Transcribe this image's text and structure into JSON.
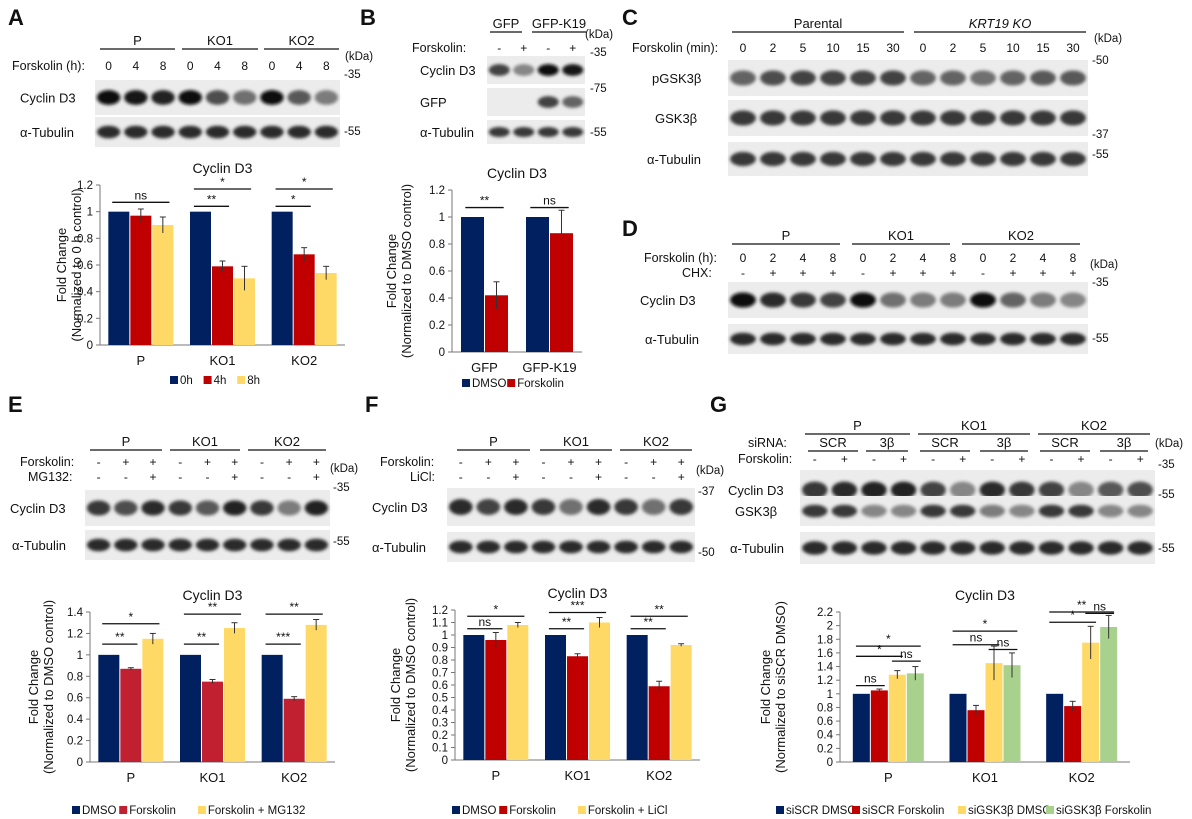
{
  "panels": {
    "A": {
      "letter": "A",
      "groups": [
        "P",
        "KO1",
        "KO2"
      ],
      "row_label": "Forskolin (h):",
      "row_values": [
        "0",
        "4",
        "8",
        "0",
        "4",
        "8",
        "0",
        "4",
        "8"
      ],
      "kda_label": "(kDa)",
      "markers": [
        "35",
        "55"
      ],
      "blots": [
        {
          "label": "Cyclin D3",
          "intensity": [
            1.0,
            0.95,
            0.9,
            1.0,
            0.7,
            0.55,
            1.0,
            0.65,
            0.5
          ]
        },
        {
          "label": "α-Tubulin",
          "intensity": [
            0.85,
            0.85,
            0.85,
            0.85,
            0.85,
            0.85,
            0.85,
            0.85,
            0.85
          ]
        }
      ],
      "chart_data": {
        "type": "bar",
        "title": "Cyclin D3",
        "ylabel": "Fold Change",
        "ylabel2": "(Normalized to 0 h control)",
        "ylim": [
          0,
          1.2
        ],
        "yticks": [
          "0",
          "0.2",
          "0.4",
          "0.6",
          "0.8",
          "1",
          "1.2"
        ],
        "categories": [
          "P",
          "KO1",
          "KO2"
        ],
        "series": [
          {
            "name": "0h",
            "color": "#002060",
            "values": [
              1.0,
              1.0,
              1.0
            ],
            "errors": [
              0,
              0,
              0
            ]
          },
          {
            "name": "4h",
            "color": "#c00000",
            "values": [
              0.97,
              0.59,
              0.68
            ],
            "errors": [
              0.05,
              0.04,
              0.05
            ]
          },
          {
            "name": "8h",
            "color": "#ffd966",
            "values": [
              0.9,
              0.5,
              0.54
            ],
            "errors": [
              0.06,
              0.09,
              0.05
            ]
          }
        ],
        "annotations": [
          "ns",
          "**",
          "*",
          "*",
          "*"
        ]
      }
    },
    "B": {
      "letter": "B",
      "groups": [
        "GFP",
        "GFP-K19"
      ],
      "row_label": "Forskolin:",
      "row_values": [
        "-",
        "+",
        "-",
        "+"
      ],
      "kda_label": "(kDa)",
      "markers": [
        "35",
        "75",
        "55"
      ],
      "blots": [
        {
          "label": "Cyclin D3",
          "intensity": [
            0.75,
            0.45,
            1.0,
            0.95
          ]
        },
        {
          "label": "GFP",
          "intensity": [
            0.0,
            0.0,
            0.75,
            0.6
          ]
        },
        {
          "label": "α-Tubulin",
          "intensity": [
            0.8,
            0.8,
            0.8,
            0.8
          ]
        }
      ],
      "chart_data": {
        "type": "bar",
        "title": "Cyclin D3",
        "ylabel": "Fold Change",
        "ylabel2": "(Normalized to DMSO control)",
        "ylim": [
          0,
          1.2
        ],
        "yticks": [
          "0",
          "0.2",
          "0.4",
          "0.6",
          "0.8",
          "1",
          "1.2"
        ],
        "categories": [
          "GFP",
          "GFP-K19"
        ],
        "series": [
          {
            "name": "DMSO",
            "color": "#002060",
            "values": [
              1.0,
              1.0
            ],
            "errors": [
              0,
              0
            ]
          },
          {
            "name": "Forskolin",
            "color": "#c00000",
            "values": [
              0.42,
              0.88
            ],
            "errors": [
              0.1,
              0.17
            ]
          }
        ],
        "annotations": [
          "**",
          "ns"
        ]
      }
    },
    "C": {
      "letter": "C",
      "groups": [
        "Parental",
        "KRT19 KO"
      ],
      "row_label": "Forskolin (min):",
      "row_values": [
        "0",
        "2",
        "5",
        "10",
        "15",
        "30",
        "0",
        "2",
        "5",
        "10",
        "15",
        "30"
      ],
      "kda_label": "(kDa)",
      "markers": [
        "50",
        "37",
        "55"
      ],
      "blots": [
        {
          "label": "pGSK3β",
          "intensity": [
            0.6,
            0.7,
            0.75,
            0.75,
            0.75,
            0.75,
            0.6,
            0.6,
            0.55,
            0.6,
            0.65,
            0.65
          ]
        },
        {
          "label": "GSK3β",
          "intensity": [
            0.8,
            0.8,
            0.8,
            0.8,
            0.8,
            0.8,
            0.8,
            0.8,
            0.8,
            0.8,
            0.8,
            0.8
          ]
        },
        {
          "label": "α-Tubulin",
          "intensity": [
            0.8,
            0.8,
            0.8,
            0.8,
            0.8,
            0.8,
            0.8,
            0.8,
            0.8,
            0.8,
            0.8,
            0.8
          ]
        }
      ]
    },
    "D": {
      "letter": "D",
      "groups": [
        "P",
        "KO1",
        "KO2"
      ],
      "row_label": "Forskolin (h):",
      "row_values": [
        "0",
        "2",
        "4",
        "8",
        "0",
        "2",
        "4",
        "8",
        "0",
        "2",
        "4",
        "8"
      ],
      "row2_label": "CHX:",
      "row2_values": [
        "-",
        "+",
        "+",
        "+",
        "-",
        "+",
        "+",
        "+",
        "-",
        "+",
        "+",
        "+"
      ],
      "kda_label": "(kDa)",
      "markers": [
        "35",
        "55"
      ],
      "blots": [
        {
          "label": "Cyclin D3",
          "intensity": [
            1.0,
            0.85,
            0.8,
            0.75,
            1.0,
            0.55,
            0.5,
            0.5,
            1.0,
            0.6,
            0.5,
            0.45
          ]
        },
        {
          "label": "α-Tubulin",
          "intensity": [
            0.85,
            0.85,
            0.85,
            0.85,
            0.85,
            0.85,
            0.85,
            0.85,
            0.85,
            0.85,
            0.85,
            0.85
          ]
        }
      ]
    },
    "E": {
      "letter": "E",
      "groups": [
        "P",
        "KO1",
        "KO2"
      ],
      "row_label": "Forskolin:",
      "row_values": [
        "-",
        "+",
        "+",
        "-",
        "+",
        "+",
        "-",
        "+",
        "+"
      ],
      "row2_label": "MG132:",
      "row2_values": [
        "-",
        "-",
        "+",
        "-",
        "-",
        "+",
        "-",
        "-",
        "+"
      ],
      "kda_label": "(kDa)",
      "markers": [
        "35",
        "55"
      ],
      "blots": [
        {
          "label": "Cyclin D3",
          "intensity": [
            0.8,
            0.7,
            0.85,
            0.8,
            0.65,
            0.9,
            0.8,
            0.5,
            0.9
          ]
        },
        {
          "label": "α-Tubulin",
          "intensity": [
            0.85,
            0.85,
            0.85,
            0.85,
            0.85,
            0.85,
            0.85,
            0.85,
            0.85
          ]
        }
      ],
      "chart_data": {
        "type": "bar",
        "title": "Cyclin D3",
        "ylabel": "Fold Change",
        "ylabel2": "(Normalized to DMSO control)",
        "ylim": [
          0,
          1.4
        ],
        "yticks": [
          "0",
          "0.2",
          "0.4",
          "0.6",
          "0.8",
          "1",
          "1.2",
          "1.4"
        ],
        "categories": [
          "P",
          "KO1",
          "KO2"
        ],
        "series": [
          {
            "name": "DMSO",
            "color": "#002060",
            "values": [
              1.0,
              1.0,
              1.0
            ],
            "errors": [
              0,
              0,
              0
            ]
          },
          {
            "name": "Forskolin",
            "color": "#c0202f",
            "values": [
              0.87,
              0.75,
              0.59
            ],
            "errors": [
              0.01,
              0.02,
              0.02
            ]
          },
          {
            "name": "Forskolin + MG132",
            "color": "#ffd966",
            "values": [
              1.15,
              1.25,
              1.28
            ],
            "errors": [
              0.05,
              0.05,
              0.05
            ]
          }
        ],
        "annotations": [
          "*",
          "**",
          "**",
          "**",
          "**",
          "***"
        ]
      }
    },
    "F": {
      "letter": "F",
      "groups": [
        "P",
        "KO1",
        "KO2"
      ],
      "row_label": "Forskolin:",
      "row_values": [
        "-",
        "+",
        "+",
        "-",
        "+",
        "+",
        "-",
        "+",
        "+"
      ],
      "row2_label": "LiCl:",
      "row2_values": [
        "-",
        "-",
        "+",
        "-",
        "-",
        "+",
        "-",
        "-",
        "+"
      ],
      "kda_label": "(kDa)",
      "markers": [
        "37",
        "50"
      ],
      "blots": [
        {
          "label": "Cyclin D3",
          "intensity": [
            0.85,
            0.75,
            0.85,
            0.8,
            0.55,
            0.85,
            0.8,
            0.55,
            0.8
          ]
        },
        {
          "label": "α-Tubulin",
          "intensity": [
            0.85,
            0.85,
            0.85,
            0.85,
            0.85,
            0.85,
            0.85,
            0.85,
            0.85
          ]
        }
      ],
      "chart_data": {
        "type": "bar",
        "title": "Cyclin D3",
        "ylabel": "Fold Change",
        "ylabel2": "(Normalized to DMSO control)",
        "ylim": [
          0,
          1.2
        ],
        "yticks": [
          "0",
          "0.1",
          "0.2",
          "0.3",
          "0.4",
          "0.5",
          "0.6",
          "0.7",
          "0.8",
          "0.9",
          "1",
          "1.1",
          "1.2"
        ],
        "categories": [
          "P",
          "KO1",
          "KO2"
        ],
        "series": [
          {
            "name": "DMSO",
            "color": "#002060",
            "values": [
              1.0,
              1.0,
              1.0
            ],
            "errors": [
              0,
              0,
              0
            ]
          },
          {
            "name": "Forskolin",
            "color": "#c00000",
            "values": [
              0.96,
              0.83,
              0.59
            ],
            "errors": [
              0.06,
              0.02,
              0.04
            ]
          },
          {
            "name": "Forskolin + LiCl",
            "color": "#ffd966",
            "values": [
              1.08,
              1.1,
              0.92
            ],
            "errors": [
              0.02,
              0.04,
              0.01
            ]
          }
        ],
        "annotations": [
          "*",
          "ns",
          "***",
          "**",
          "**",
          "**"
        ]
      }
    },
    "G": {
      "letter": "G",
      "groups": [
        "P",
        "KO1",
        "KO2"
      ],
      "row_label": "siRNA:",
      "siRNA_labels": [
        "SCR",
        "3β",
        "SCR",
        "3β",
        "SCR",
        "3β"
      ],
      "row2_label": "Forskolin:",
      "row2_values": [
        "-",
        "+",
        "-",
        "+",
        "-",
        "+",
        "-",
        "+",
        "-",
        "+",
        "-",
        "+"
      ],
      "kda_label": "(kDa)",
      "markers": [
        "35",
        "55",
        "55"
      ],
      "blots": [
        {
          "label": "Cyclin D3",
          "intensity": [
            0.8,
            0.85,
            0.9,
            0.9,
            0.75,
            0.45,
            0.85,
            0.8,
            0.75,
            0.45,
            0.65,
            0.7
          ]
        },
        {
          "label": "GSK3β",
          "intensity": [
            0.8,
            0.8,
            0.45,
            0.45,
            0.8,
            0.8,
            0.5,
            0.45,
            0.8,
            0.8,
            0.45,
            0.45
          ]
        },
        {
          "label": "α-Tubulin",
          "intensity": [
            0.85,
            0.85,
            0.85,
            0.85,
            0.85,
            0.85,
            0.85,
            0.85,
            0.85,
            0.85,
            0.85,
            0.85
          ]
        }
      ],
      "chart_data": {
        "type": "bar",
        "title": "Cyclin D3",
        "ylabel": "Fold Change",
        "ylabel2": "(Normalized to siSCR DMSO)",
        "ylim": [
          0,
          2.2
        ],
        "yticks": [
          "0",
          "0.2",
          "0.4",
          "0.6",
          "0.8",
          "1",
          "1.2",
          "1.4",
          "1.6",
          "1.8",
          "2",
          "2.2"
        ],
        "categories": [
          "P",
          "KO1",
          "KO2"
        ],
        "series": [
          {
            "name": "siSCR DMSO",
            "color": "#002060",
            "values": [
              1.0,
              1.0,
              1.0
            ],
            "errors": [
              0,
              0,
              0
            ]
          },
          {
            "name": "siSCR Forskolin",
            "color": "#c00000",
            "values": [
              1.05,
              0.76,
              0.82
            ],
            "errors": [
              0.02,
              0.07,
              0.07
            ]
          },
          {
            "name": "siGSK3β DMSO",
            "color": "#ffd966",
            "values": [
              1.28,
              1.45,
              1.75
            ],
            "errors": [
              0.06,
              0.25,
              0.24
            ]
          },
          {
            "name": "siGSK3β Forskolin",
            "color": "#a9d18e",
            "values": [
              1.3,
              1.42,
              1.98
            ],
            "errors": [
              0.1,
              0.18,
              0.17
            ]
          }
        ],
        "annotations": [
          "*",
          "*",
          "ns",
          "ns",
          "*",
          "ns",
          "ns",
          "**",
          "*",
          "ns"
        ]
      }
    }
  }
}
